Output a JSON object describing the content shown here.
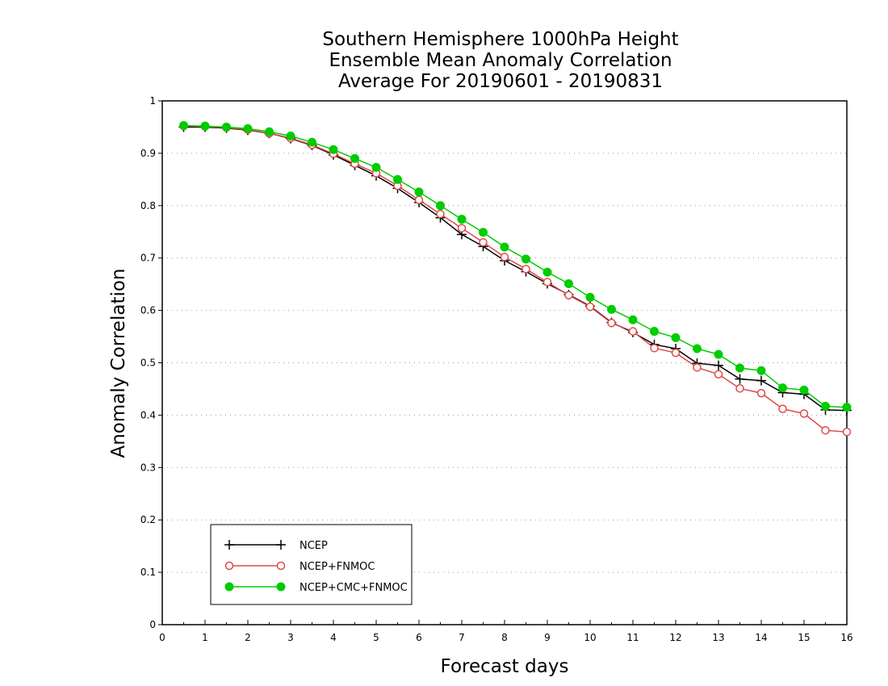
{
  "chart_data": {
    "type": "line",
    "title_lines": [
      "Southern Hemisphere 1000hPa Height",
      "Ensemble Mean Anomaly Correlation",
      "Average For 20190601 - 20190831"
    ],
    "xlabel": "Forecast days",
    "ylabel": "Anomaly Correlation",
    "xlim": [
      0,
      16
    ],
    "ylim": [
      0,
      1
    ],
    "x_ticks": [
      "0",
      "1",
      "2",
      "3",
      "4",
      "5",
      "6",
      "7",
      "8",
      "9",
      "10",
      "11",
      "12",
      "13",
      "14",
      "15",
      "16"
    ],
    "y_ticks": [
      "0",
      "0.1",
      "0.2",
      "0.3",
      "0.4",
      "0.5",
      "0.6",
      "0.7",
      "0.8",
      "0.9",
      "1"
    ],
    "grid": true,
    "legend_position": "bottom-left",
    "x": [
      0.5,
      1,
      1.5,
      2,
      2.5,
      3,
      3.5,
      4,
      4.5,
      5,
      5.5,
      6,
      6.5,
      7,
      7.5,
      8,
      8.5,
      9,
      9.5,
      10,
      10.5,
      11,
      11.5,
      12,
      12.5,
      13,
      13.5,
      14,
      14.5,
      15,
      15.5,
      16
    ],
    "series": [
      {
        "name": "NCEP",
        "color": "#000000",
        "marker": "plus",
        "values": [
          0.95,
          0.95,
          0.948,
          0.944,
          0.938,
          0.928,
          0.915,
          0.897,
          0.877,
          0.857,
          0.833,
          0.806,
          0.777,
          0.745,
          0.722,
          0.695,
          0.674,
          0.651,
          0.63,
          0.608,
          0.577,
          0.558,
          0.535,
          0.527,
          0.499,
          0.495,
          0.469,
          0.466,
          0.443,
          0.44,
          0.41,
          0.409
        ]
      },
      {
        "name": "NCEP+FNMOC",
        "color": "#e04848",
        "marker": "open-circle",
        "values": [
          0.952,
          0.951,
          0.949,
          0.945,
          0.938,
          0.929,
          0.916,
          0.899,
          0.88,
          0.862,
          0.838,
          0.811,
          0.784,
          0.757,
          0.73,
          0.702,
          0.679,
          0.654,
          0.629,
          0.607,
          0.576,
          0.56,
          0.528,
          0.519,
          0.491,
          0.478,
          0.451,
          0.442,
          0.412,
          0.403,
          0.371,
          0.368
        ]
      },
      {
        "name": "NCEP+CMC+FNMOC",
        "color": "#00cc00",
        "marker": "filled-circle",
        "values": [
          0.953,
          0.952,
          0.95,
          0.947,
          0.941,
          0.933,
          0.921,
          0.907,
          0.89,
          0.873,
          0.85,
          0.826,
          0.8,
          0.774,
          0.749,
          0.721,
          0.698,
          0.673,
          0.651,
          0.625,
          0.602,
          0.582,
          0.56,
          0.548,
          0.527,
          0.516,
          0.49,
          0.485,
          0.452,
          0.448,
          0.417,
          0.415
        ]
      }
    ]
  }
}
